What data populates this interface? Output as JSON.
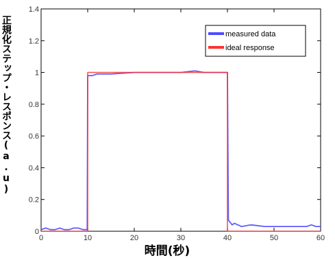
{
  "chart_data": {
    "type": "line",
    "xlabel": "時間(秒)",
    "ylabel": "正規化ステップ・レスポンス(a.u)",
    "xlim": [
      0,
      60
    ],
    "ylim": [
      0,
      1.4
    ],
    "x_ticks": [
      "0",
      "10",
      "20",
      "30",
      "40",
      "50",
      "60"
    ],
    "y_ticks": [
      "0",
      "0.2",
      "0.4",
      "0.6",
      "0.8",
      "1",
      "1.2",
      "1.4"
    ],
    "legend_position": "top-right",
    "grid": false,
    "series": [
      {
        "name": "measured data",
        "color": "#4d4dff",
        "x": [
          0,
          1,
          2,
          3,
          4,
          5,
          6,
          7,
          8,
          9,
          9.9,
          10,
          11,
          12,
          15,
          20,
          25,
          30,
          33,
          35,
          38,
          40,
          40.2,
          41,
          41.5,
          43,
          45,
          48,
          50,
          52,
          55,
          57,
          58,
          59,
          60
        ],
        "y": [
          0.01,
          0.02,
          0.01,
          0.01,
          0.02,
          0.01,
          0.01,
          0.02,
          0.02,
          0.01,
          0.01,
          0.98,
          0.98,
          0.99,
          0.99,
          1.0,
          1.0,
          1.0,
          1.01,
          1.0,
          1.0,
          1.0,
          0.07,
          0.04,
          0.05,
          0.03,
          0.04,
          0.03,
          0.03,
          0.03,
          0.03,
          0.03,
          0.04,
          0.03,
          0.03
        ]
      },
      {
        "name": "ideal response",
        "color": "#ff3333",
        "x": [
          0,
          10,
          10,
          40,
          40,
          60
        ],
        "y": [
          0,
          0,
          1,
          1,
          0,
          0
        ]
      }
    ]
  }
}
